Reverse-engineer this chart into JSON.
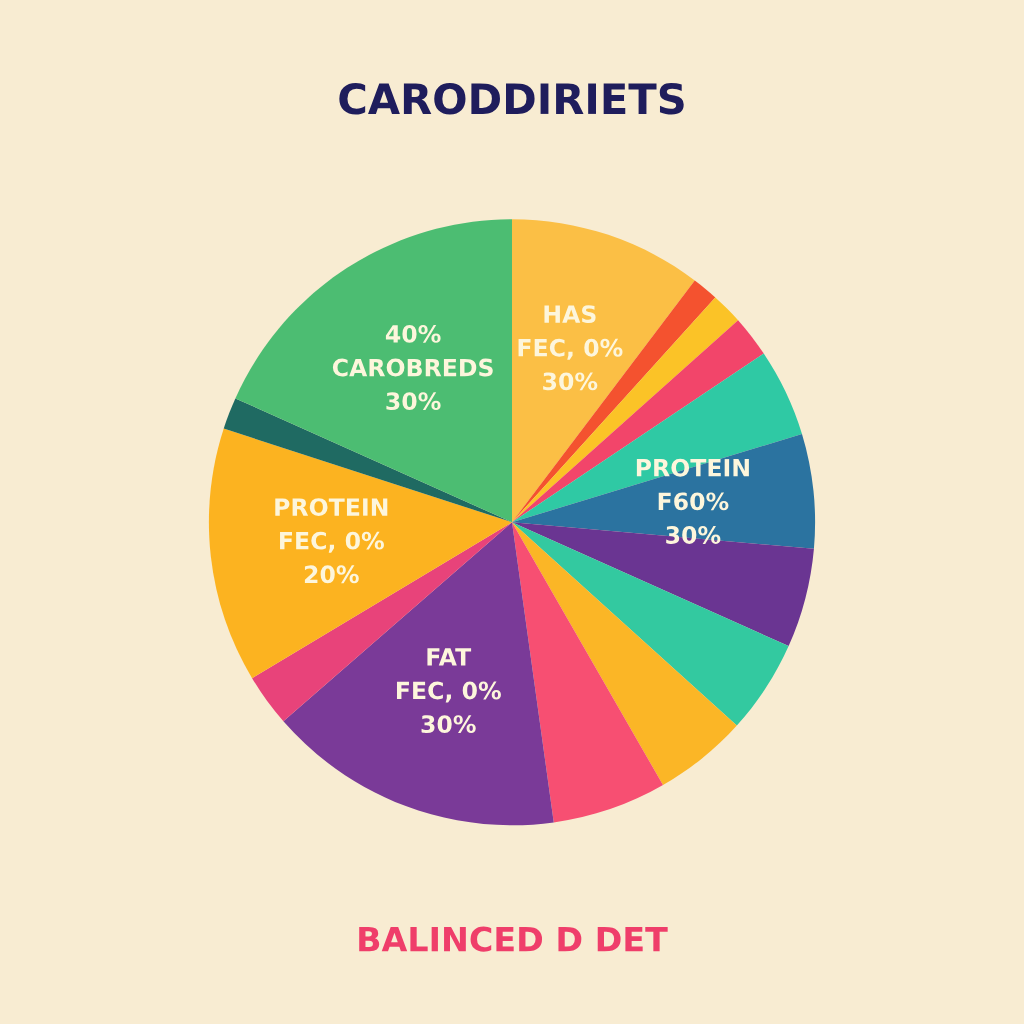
{
  "chart_data": {
    "type": "pie",
    "title": "CARODDIRIETS",
    "subtitle": "BALINCED D DET",
    "categories": [
      "HAS\nFEC, 0%\n30%",
      null,
      null,
      null,
      null,
      "PROTEIN\nF60%\n30%",
      null,
      null,
      null,
      null,
      "FAT\nFEC, 0%\n30%",
      null,
      "PROTEIN\nFEC, 0%\n20%",
      null,
      "40%\nCAROBREDS\n30%"
    ],
    "values": [
      10.3,
      1.4,
      1.7,
      2.2,
      4.7,
      6.1,
      5.3,
      5.0,
      5.0,
      6.1,
      15.8,
      2.8,
      13.6,
      1.7,
      18.3
    ],
    "colors": [
      "#fbbf45",
      "#f4522f",
      "#fbc327",
      "#f2456a",
      "#2fc9a4",
      "#2b73a0",
      "#6a3592",
      "#33c9a0",
      "#fbb626",
      "#f74f72",
      "#7a3a98",
      "#e8437a",
      "#fcb320",
      "#1f6a62",
      "#4cbd72"
    ]
  }
}
